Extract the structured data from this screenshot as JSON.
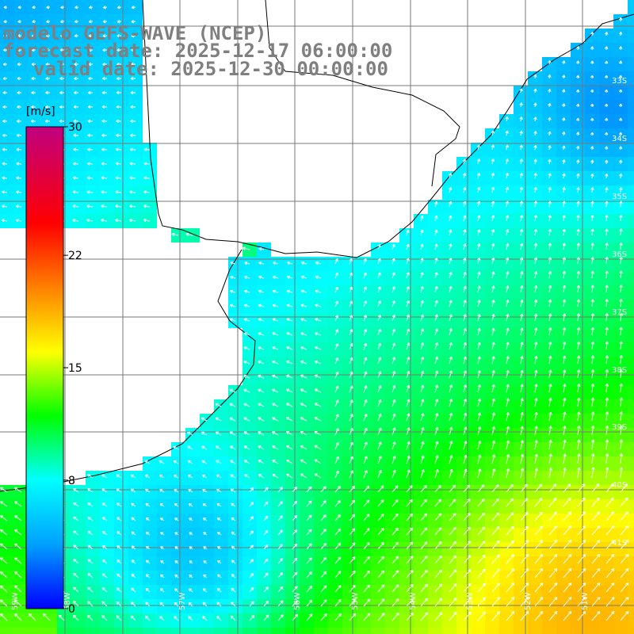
{
  "title": {
    "line1": "modelo GEFS-WAVE (NCEP)",
    "line2": "forecast date: 2025-12-17 06:00:00",
    "line3": "valid date: 2025-12-30 00:00:00"
  },
  "colorbar": {
    "unit": "[m/s]",
    "ticks": [
      "30",
      "22",
      "15",
      "8",
      "0"
    ],
    "min": 0,
    "max": 30,
    "stops": [
      "#0000ff",
      "#00a0ff",
      "#00ffff",
      "#00ff00",
      "#ffff00",
      "#ff8000",
      "#ff0000",
      "#c00080"
    ]
  },
  "map": {
    "variable": "wind speed",
    "lon_range": [
      -59,
      -51
    ],
    "lat_range": [
      -41,
      -32
    ],
    "lat_labels": [
      "33S",
      "34S",
      "35S",
      "36S",
      "37S",
      "38S",
      "39S",
      "40S",
      "41S"
    ],
    "lon_labels": [
      "59W",
      "58W",
      "57W",
      "56W",
      "55W",
      "54W",
      "53W",
      "52W",
      "51W"
    ]
  }
}
